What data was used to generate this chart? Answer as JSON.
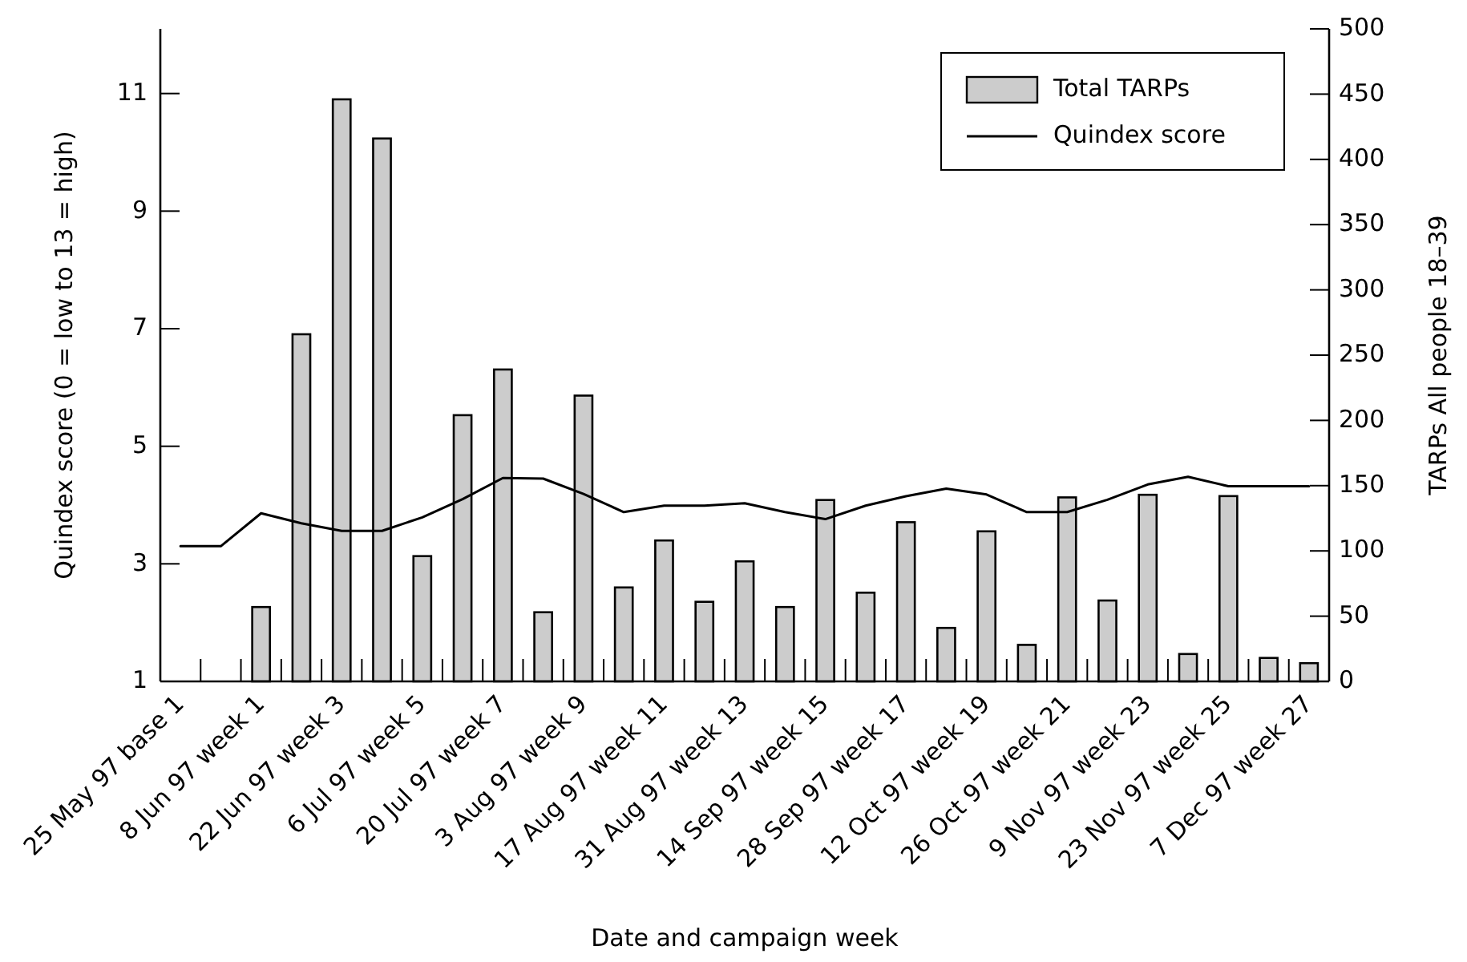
{
  "chart_data": {
    "type": "bar",
    "xlabel": "Date and campaign week",
    "ylabel": "Quindex score (0 = low to 13 = high)",
    "y2label": "TARPs All people 18–39",
    "categories": [
      "25 May 97 base 1",
      null,
      "8 Jun 97 week 1",
      null,
      "22 Jun 97 week 3",
      null,
      "6 Jul 97 week 5",
      null,
      "20 Jul 97 week 7",
      null,
      "3 Aug 97 week 9",
      null,
      "17 Aug 97 week 11",
      null,
      "31 Aug 97 week 13",
      null,
      "14 Sep 97 week 15",
      null,
      "28 Sep 97 week 17",
      null,
      "12 Oct 97 week 19",
      null,
      "26 Oct 97 week 21",
      null,
      "9 Nov 97 week 23",
      null,
      "23 Nov 97 week 25",
      null,
      "7 Dec 97 week 27"
    ],
    "series": [
      {
        "name": "Total TARPs",
        "axis": "y2",
        "color": "#cccccc",
        "values": [
          null,
          null,
          57,
          266,
          446,
          416,
          96,
          204,
          239,
          53,
          219,
          72,
          108,
          61,
          92,
          57,
          139,
          68,
          122,
          41,
          115,
          28,
          141,
          62,
          143,
          21,
          142,
          18,
          14
        ]
      },
      {
        "name": "Quindex score",
        "type": "line",
        "color": "#000000",
        "values": [
          3.3,
          3.3,
          3.86,
          3.69,
          3.56,
          3.56,
          3.79,
          4.1,
          4.46,
          4.45,
          4.19,
          3.88,
          3.99,
          3.99,
          4.03,
          3.88,
          3.76,
          3.99,
          4.15,
          4.28,
          4.18,
          3.88,
          3.88,
          4.09,
          4.35,
          4.48,
          4.32,
          4.32,
          4.32
        ]
      }
    ],
    "ylim": [
      1,
      12.1
    ],
    "yticks": [
      1,
      3,
      5,
      7,
      9,
      11
    ],
    "y2lim": [
      0,
      500
    ],
    "y2ticks": [
      0,
      50,
      100,
      150,
      200,
      250,
      300,
      350,
      400,
      450,
      500
    ],
    "legend": "top right"
  }
}
